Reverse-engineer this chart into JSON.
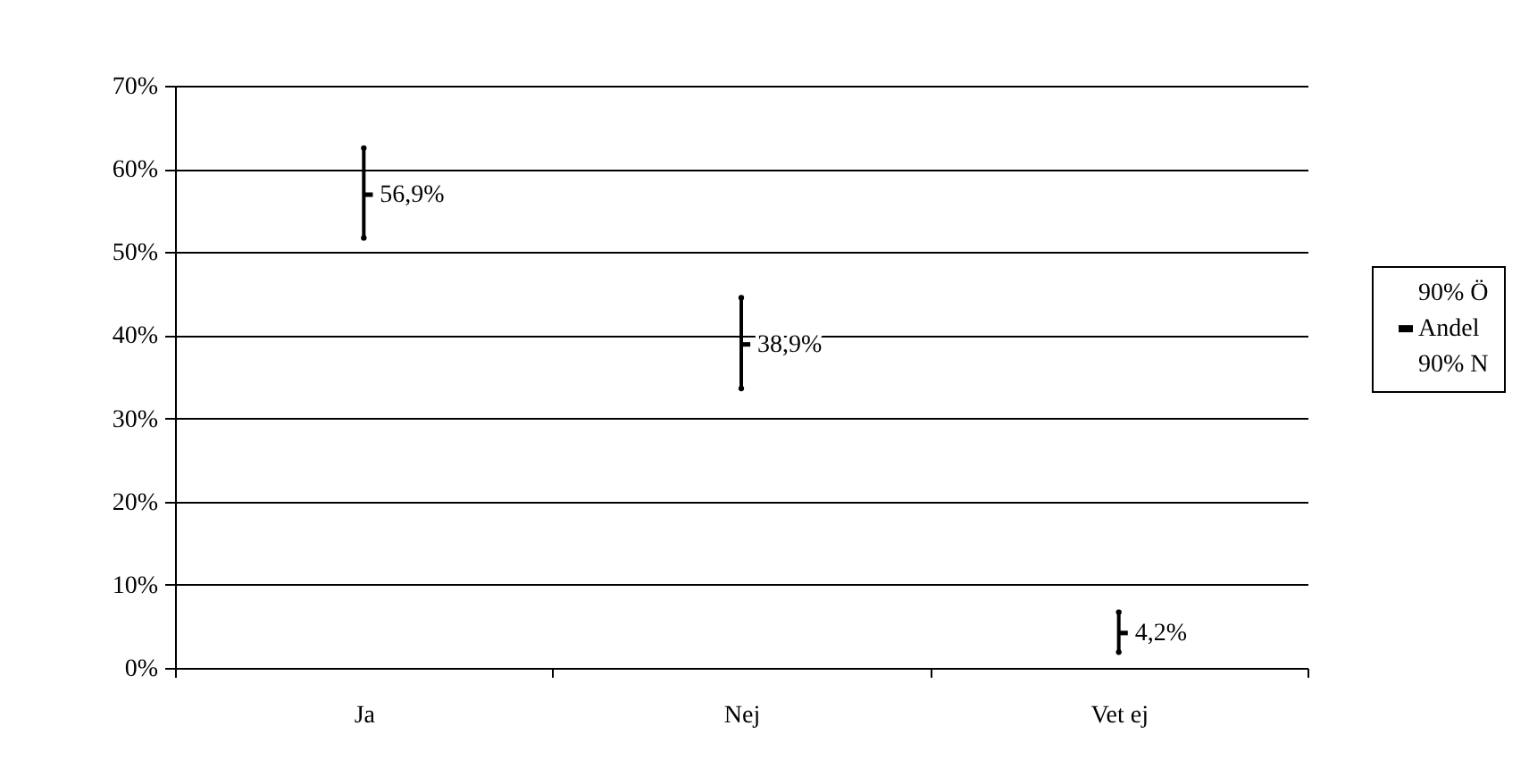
{
  "chart_data": {
    "type": "scatter",
    "categories": [
      "Ja",
      "Nej",
      "Vet ej"
    ],
    "series": [
      {
        "name": "90% Ö",
        "color": "#000000",
        "marker": "none",
        "values": [
          62.5,
          44.5,
          6.7
        ]
      },
      {
        "name": "Andel",
        "color": "#000000",
        "marker": "square",
        "values": [
          56.9,
          38.9,
          4.2
        ],
        "value_labels": [
          "56,9%",
          "38,9%",
          "4,2%"
        ]
      },
      {
        "name": "90% N",
        "color": "#000000",
        "marker": "none",
        "values": [
          51.7,
          33.6,
          1.9
        ]
      }
    ],
    "ylim": [
      0,
      70
    ],
    "yticks": [
      {
        "value": 0,
        "label": "0%"
      },
      {
        "value": 10,
        "label": "10%"
      },
      {
        "value": 20,
        "label": "20%"
      },
      {
        "value": 30,
        "label": "30%"
      },
      {
        "value": 40,
        "label": "40%"
      },
      {
        "value": 50,
        "label": "50%"
      },
      {
        "value": 60,
        "label": "60%"
      },
      {
        "value": 70,
        "label": "70%"
      }
    ],
    "grid": "y",
    "legend": "right"
  }
}
